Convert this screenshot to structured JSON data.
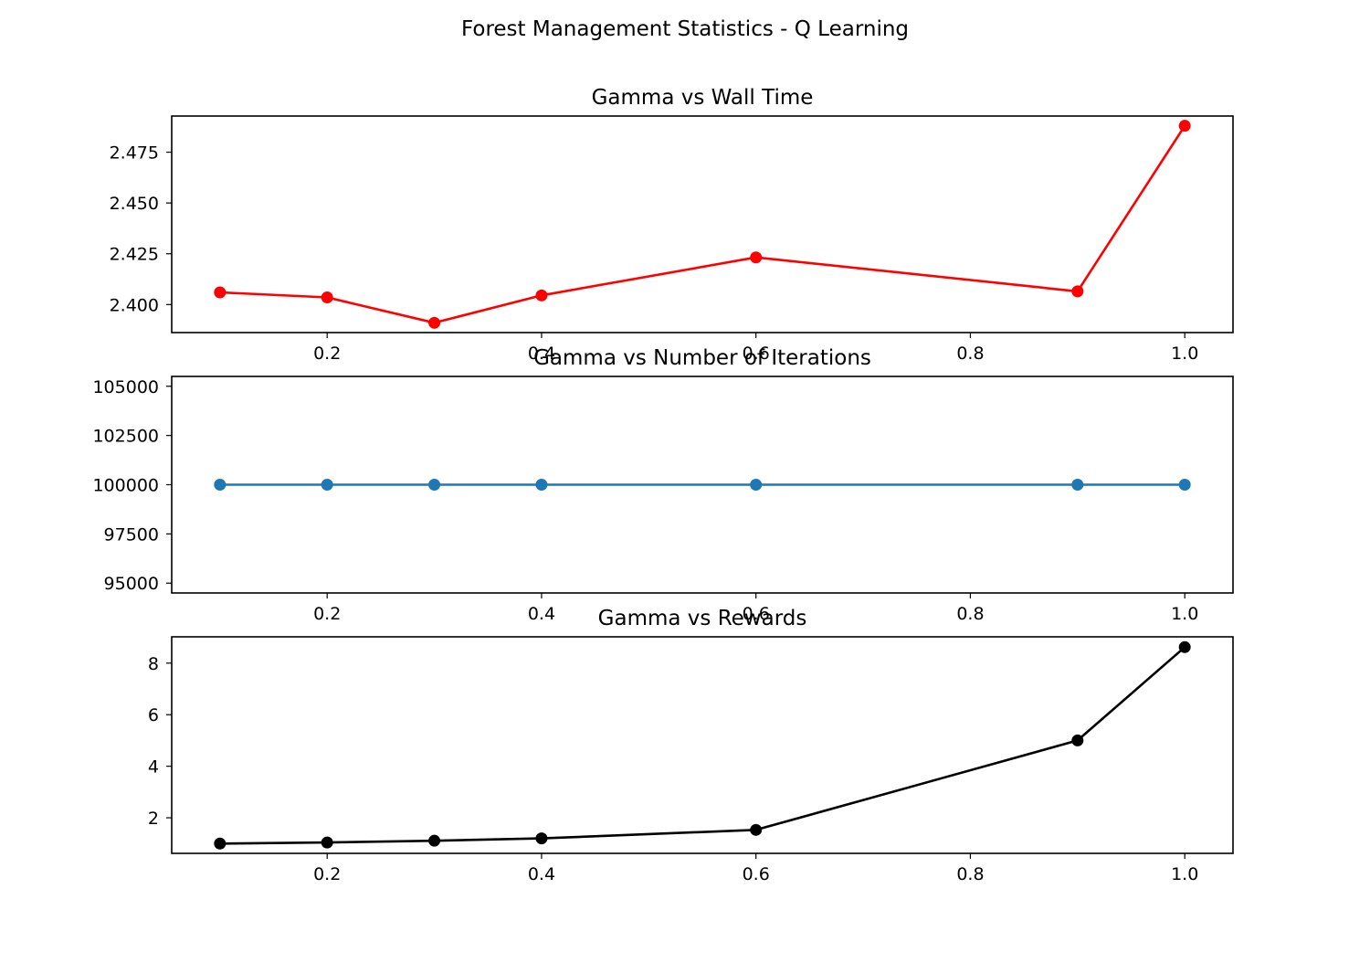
{
  "figure": {
    "title": "Forest Management Statistics - Q Learning"
  },
  "chart_data": [
    {
      "type": "line",
      "title": "Gamma vs Wall Time",
      "xlabel": "",
      "ylabel": "",
      "x": [
        0.1,
        0.2,
        0.3,
        0.4,
        0.6,
        0.9,
        1.0
      ],
      "series": [
        {
          "values": [
            2.406,
            2.4035,
            2.391,
            2.4045,
            2.4232,
            2.4065,
            2.488
          ],
          "color": "#ff0000",
          "marker": "circle"
        }
      ],
      "xticks": [
        0.2,
        0.4,
        0.6,
        0.8,
        1.0
      ],
      "xtick_labels": [
        "0.2",
        "0.4",
        "0.6",
        "0.8",
        "1.0"
      ],
      "yticks": [
        2.4,
        2.425,
        2.45,
        2.475
      ],
      "ytick_labels": [
        "2.400",
        "2.425",
        "2.450",
        "2.475"
      ],
      "xlim": [
        0.055,
        1.045
      ],
      "ylim": [
        2.3862,
        2.4928
      ],
      "grid": false
    },
    {
      "type": "line",
      "title": "Gamma vs Number of Iterations",
      "xlabel": "",
      "ylabel": "",
      "x": [
        0.1,
        0.2,
        0.3,
        0.4,
        0.6,
        0.9,
        1.0
      ],
      "series": [
        {
          "values": [
            100000,
            100000,
            100000,
            100000,
            100000,
            100000,
            100000
          ],
          "color": "#1f77b4",
          "marker": "circle"
        }
      ],
      "xticks": [
        0.2,
        0.4,
        0.6,
        0.8,
        1.0
      ],
      "xtick_labels": [
        "0.2",
        "0.4",
        "0.6",
        "0.8",
        "1.0"
      ],
      "yticks": [
        95000,
        97500,
        100000,
        102500,
        105000
      ],
      "ytick_labels": [
        "95000",
        "97500",
        "100000",
        "102500",
        "105000"
      ],
      "xlim": [
        0.055,
        1.045
      ],
      "ylim": [
        94500,
        105500
      ],
      "grid": false
    },
    {
      "type": "line",
      "title": "Gamma vs Rewards",
      "xlabel": "",
      "ylabel": "",
      "x": [
        0.1,
        0.2,
        0.3,
        0.4,
        0.6,
        0.9,
        1.0
      ],
      "series": [
        {
          "values": [
            1.0,
            1.04,
            1.11,
            1.2,
            1.53,
            5.0,
            8.62
          ],
          "color": "#000000",
          "marker": "circle"
        }
      ],
      "xticks": [
        0.2,
        0.4,
        0.6,
        0.8,
        1.0
      ],
      "xtick_labels": [
        "0.2",
        "0.4",
        "0.6",
        "0.8",
        "1.0"
      ],
      "yticks": [
        2,
        4,
        6,
        8
      ],
      "ytick_labels": [
        "2",
        "4",
        "6",
        "8"
      ],
      "xlim": [
        0.055,
        1.045
      ],
      "ylim": [
        0.62,
        9.02
      ],
      "grid": false
    }
  ]
}
